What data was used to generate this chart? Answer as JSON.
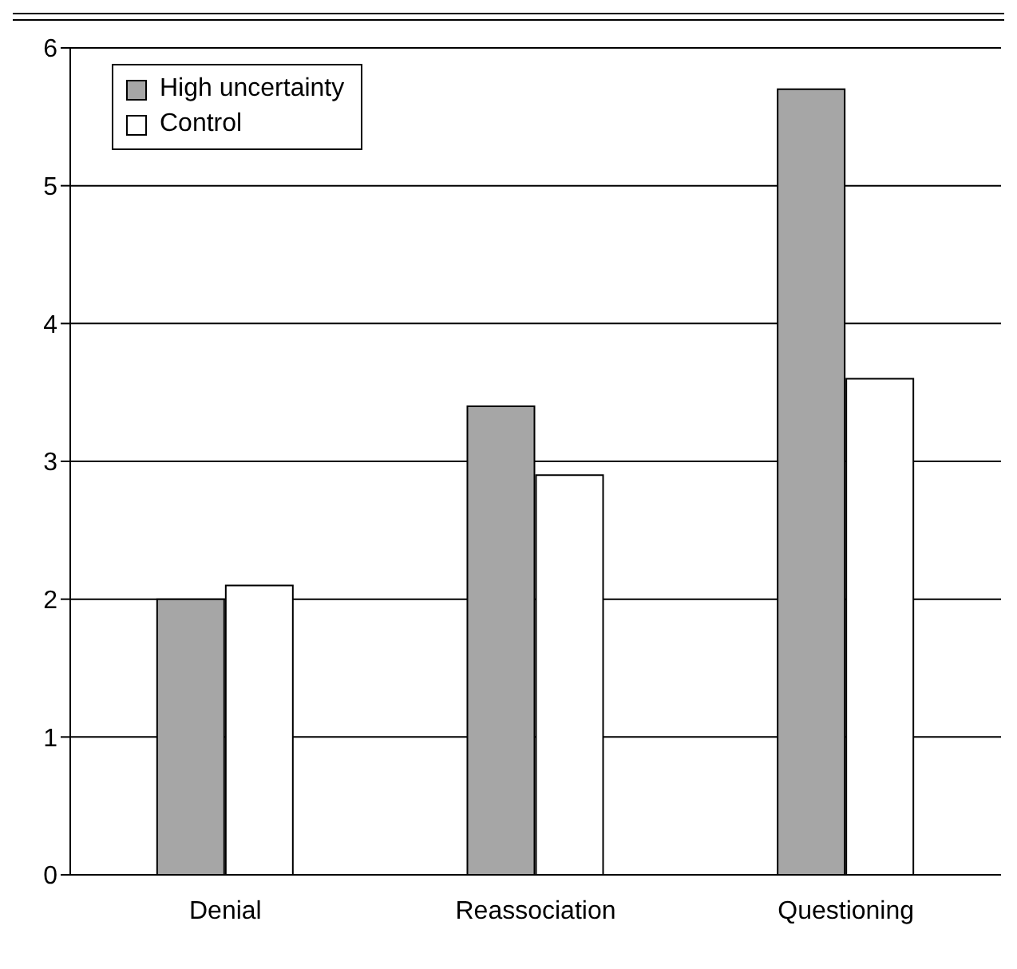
{
  "chart_data": {
    "type": "bar",
    "categories": [
      "Denial",
      "Reassociation",
      "Questioning"
    ],
    "series": [
      {
        "name": "High uncertainty",
        "color": "#a6a6a6",
        "values": [
          2.0,
          3.4,
          5.7
        ]
      },
      {
        "name": "Control",
        "color": "#ffffff",
        "values": [
          2.1,
          2.9,
          3.6
        ]
      }
    ],
    "ylim": [
      0,
      6
    ],
    "yticks": [
      0,
      1,
      2,
      3,
      4,
      5,
      6
    ],
    "grid": "y",
    "legend": "top left"
  }
}
